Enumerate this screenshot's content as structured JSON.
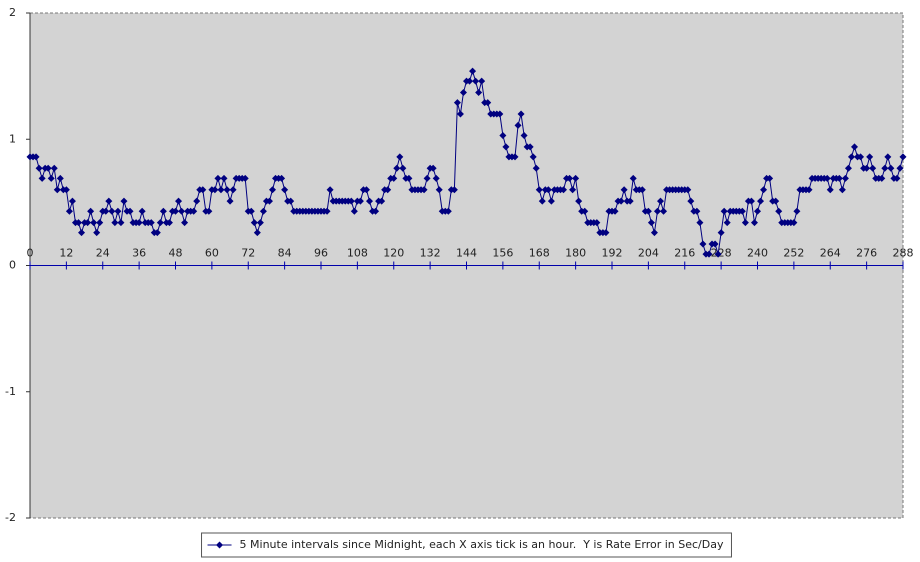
{
  "chart_data": {
    "type": "line",
    "x": [
      0,
      1,
      2,
      3,
      4,
      5,
      6,
      7,
      8,
      9,
      10,
      11,
      12,
      13,
      14,
      15,
      16,
      17,
      18,
      19,
      20,
      21,
      22,
      23,
      24,
      25,
      26,
      27,
      28,
      29,
      30,
      31,
      32,
      33,
      34,
      35,
      36,
      37,
      38,
      39,
      40,
      41,
      42,
      43,
      44,
      45,
      46,
      47,
      48,
      49,
      50,
      51,
      52,
      53,
      54,
      55,
      56,
      57,
      58,
      59,
      60,
      61,
      62,
      63,
      64,
      65,
      66,
      67,
      68,
      69,
      70,
      71,
      72,
      73,
      74,
      75,
      76,
      77,
      78,
      79,
      80,
      81,
      82,
      83,
      84,
      85,
      86,
      87,
      88,
      89,
      90,
      91,
      92,
      93,
      94,
      95,
      96,
      97,
      98,
      99,
      100,
      101,
      102,
      103,
      104,
      105,
      106,
      107,
      108,
      109,
      110,
      111,
      112,
      113,
      114,
      115,
      116,
      117,
      118,
      119,
      120,
      121,
      122,
      123,
      124,
      125,
      126,
      127,
      128,
      129,
      130,
      131,
      132,
      133,
      134,
      135,
      136,
      137,
      138,
      139,
      140,
      141,
      142,
      143,
      144,
      145,
      146,
      147,
      148,
      149,
      150,
      151,
      152,
      153,
      154,
      155,
      156,
      157,
      158,
      159,
      160,
      161,
      162,
      163,
      164,
      165,
      166,
      167,
      168,
      169,
      170,
      171,
      172,
      173,
      174,
      175,
      176,
      177,
      178,
      179,
      180,
      181,
      182,
      183,
      184,
      185,
      186,
      187,
      188,
      189,
      190,
      191,
      192,
      193,
      194,
      195,
      196,
      197,
      198,
      199,
      200,
      201,
      202,
      203,
      204,
      205,
      206,
      207,
      208,
      209,
      210,
      211,
      212,
      213,
      214,
      215,
      216,
      217,
      218,
      219,
      220,
      221,
      222,
      223,
      224,
      225,
      226,
      227,
      228,
      229,
      230,
      231,
      232,
      233,
      234,
      235,
      236,
      237,
      238,
      239,
      240,
      241,
      242,
      243,
      244,
      245,
      246,
      247,
      248,
      249,
      250,
      251,
      252,
      253,
      254,
      255,
      256,
      257,
      258,
      259,
      260,
      261,
      262,
      263,
      264,
      265,
      266,
      267,
      268,
      269,
      270,
      271,
      272,
      273,
      274,
      275,
      276,
      277,
      278,
      279,
      280,
      281,
      282,
      283,
      284,
      285,
      286,
      287,
      288
    ],
    "series": [
      {
        "name": "5 Minute intervals since Midnight, each X axis tick is an hour.  Y is Rate Error in Sec/Day",
        "color": "#000080",
        "values": [
          0.86,
          0.86,
          0.86,
          0.77,
          0.69,
          0.77,
          0.77,
          0.69,
          0.77,
          0.6,
          0.69,
          0.6,
          0.6,
          0.43,
          0.51,
          0.34,
          0.34,
          0.26,
          0.34,
          0.34,
          0.43,
          0.34,
          0.26,
          0.34,
          0.43,
          0.43,
          0.51,
          0.43,
          0.34,
          0.43,
          0.34,
          0.51,
          0.43,
          0.43,
          0.34,
          0.34,
          0.34,
          0.43,
          0.34,
          0.34,
          0.34,
          0.26,
          0.26,
          0.34,
          0.43,
          0.34,
          0.34,
          0.43,
          0.43,
          0.51,
          0.43,
          0.34,
          0.43,
          0.43,
          0.43,
          0.51,
          0.6,
          0.6,
          0.43,
          0.43,
          0.6,
          0.6,
          0.69,
          0.6,
          0.69,
          0.6,
          0.51,
          0.6,
          0.69,
          0.69,
          0.69,
          0.69,
          0.43,
          0.43,
          0.34,
          0.26,
          0.34,
          0.43,
          0.51,
          0.51,
          0.6,
          0.69,
          0.69,
          0.69,
          0.6,
          0.51,
          0.51,
          0.43,
          0.43,
          0.43,
          0.43,
          0.43,
          0.43,
          0.43,
          0.43,
          0.43,
          0.43,
          0.43,
          0.43,
          0.6,
          0.51,
          0.51,
          0.51,
          0.51,
          0.51,
          0.51,
          0.51,
          0.43,
          0.51,
          0.51,
          0.6,
          0.6,
          0.51,
          0.43,
          0.43,
          0.51,
          0.51,
          0.6,
          0.6,
          0.69,
          0.69,
          0.77,
          0.86,
          0.77,
          0.69,
          0.69,
          0.6,
          0.6,
          0.6,
          0.6,
          0.6,
          0.69,
          0.77,
          0.77,
          0.69,
          0.6,
          0.43,
          0.43,
          0.43,
          0.6,
          0.6,
          1.29,
          1.2,
          1.37,
          1.46,
          1.46,
          1.54,
          1.46,
          1.37,
          1.46,
          1.29,
          1.29,
          1.2,
          1.2,
          1.2,
          1.2,
          1.03,
          0.94,
          0.86,
          0.86,
          0.86,
          1.11,
          1.2,
          1.03,
          0.94,
          0.94,
          0.86,
          0.77,
          0.6,
          0.51,
          0.6,
          0.6,
          0.51,
          0.6,
          0.6,
          0.6,
          0.6,
          0.69,
          0.69,
          0.6,
          0.69,
          0.51,
          0.43,
          0.43,
          0.34,
          0.34,
          0.34,
          0.34,
          0.26,
          0.26,
          0.26,
          0.43,
          0.43,
          0.43,
          0.51,
          0.51,
          0.6,
          0.51,
          0.51,
          0.69,
          0.6,
          0.6,
          0.6,
          0.43,
          0.43,
          0.34,
          0.26,
          0.43,
          0.51,
          0.43,
          0.6,
          0.6,
          0.6,
          0.6,
          0.6,
          0.6,
          0.6,
          0.6,
          0.51,
          0.43,
          0.43,
          0.34,
          0.17,
          0.09,
          0.09,
          0.17,
          0.17,
          0.09,
          0.26,
          0.43,
          0.34,
          0.43,
          0.43,
          0.43,
          0.43,
          0.43,
          0.34,
          0.51,
          0.51,
          0.34,
          0.43,
          0.51,
          0.6,
          0.69,
          0.69,
          0.51,
          0.51,
          0.43,
          0.34,
          0.34,
          0.34,
          0.34,
          0.34,
          0.43,
          0.6,
          0.6,
          0.6,
          0.6,
          0.69,
          0.69,
          0.69,
          0.69,
          0.69,
          0.69,
          0.6,
          0.69,
          0.69,
          0.69,
          0.6,
          0.69,
          0.77,
          0.86,
          0.94,
          0.86,
          0.86,
          0.77,
          0.77,
          0.86,
          0.77,
          0.69,
          0.69,
          0.69,
          0.77,
          0.86,
          0.77,
          0.69,
          0.69,
          0.77,
          0.86
        ]
      }
    ],
    "xlim": [
      0,
      288
    ],
    "xticks": [
      0,
      12,
      24,
      36,
      48,
      60,
      72,
      84,
      96,
      108,
      120,
      132,
      144,
      156,
      168,
      180,
      192,
      204,
      216,
      228,
      240,
      252,
      264,
      276,
      288
    ],
    "ylim": [
      -2,
      2
    ],
    "yticks": [
      -2,
      -1,
      0,
      1,
      2
    ],
    "plot_background": "#d3d3d3",
    "legend": "bottom"
  }
}
